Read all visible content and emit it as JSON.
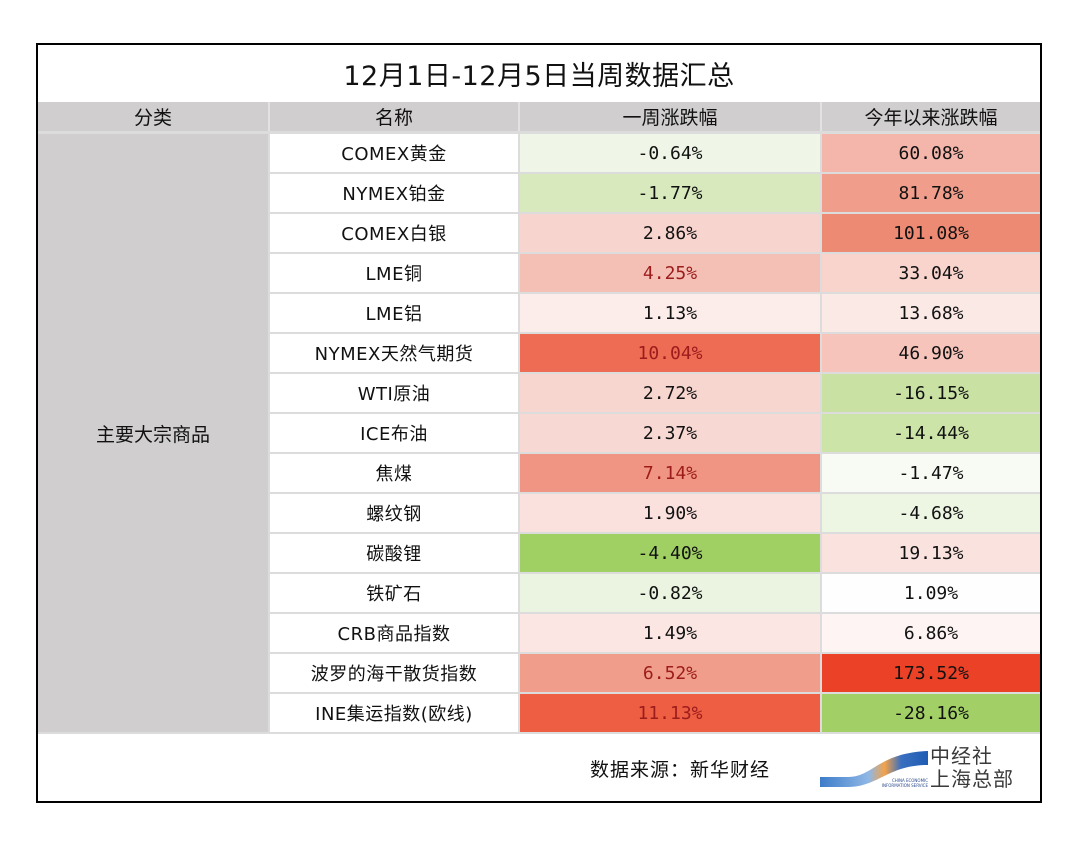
{
  "title": "12月1日-12月5日当周数据汇总",
  "headers": [
    "分类",
    "名称",
    "一周涨跌幅",
    "今年以来涨跌幅"
  ],
  "category": "主要大宗商品",
  "rows": [
    {
      "name": "COMEX黄金",
      "week": "-0.64%",
      "ytd": "60.08%",
      "week_bg": "#eff6e7",
      "ytd_bg": "#f4b6aa",
      "week_color": "#111111"
    },
    {
      "name": "NYMEX铂金",
      "week": "-1.77%",
      "ytd": "81.78%",
      "week_bg": "#d8eabd",
      "ytd_bg": "#f09d8c",
      "week_color": "#111111"
    },
    {
      "name": "COMEX白银",
      "week": "2.86%",
      "ytd": "101.08%",
      "week_bg": "#f8d4ce",
      "ytd_bg": "#ed8a74",
      "week_color": "#111111"
    },
    {
      "name": "LME铜",
      "week": "4.25%",
      "ytd": "33.04%",
      "week_bg": "#f4bfb4",
      "ytd_bg": "#f8d4cd",
      "week_color": "#9c1c1c"
    },
    {
      "name": "LME铝",
      "week": "1.13%",
      "ytd": "13.68%",
      "week_bg": "#fcecea",
      "ytd_bg": "#fbe9e6",
      "week_color": "#111111"
    },
    {
      "name": "NYMEX天然气期货",
      "week": "10.04%",
      "ytd": "46.90%",
      "week_bg": "#ee6c53",
      "ytd_bg": "#f6c4ba",
      "week_color": "#9c1c1c"
    },
    {
      "name": "WTI原油",
      "week": "2.72%",
      "ytd": "-16.15%",
      "week_bg": "#f8d6d0",
      "ytd_bg": "#c9e2a4",
      "week_color": "#111111"
    },
    {
      "name": "ICE布油",
      "week": "2.37%",
      "ytd": "-14.44%",
      "week_bg": "#f8d8d2",
      "ytd_bg": "#cde4a9",
      "week_color": "#111111"
    },
    {
      "name": "焦煤",
      "week": "7.14%",
      "ytd": "-1.47%",
      "week_bg": "#f09583",
      "ytd_bg": "#f8fbf4",
      "week_color": "#9c1c1c"
    },
    {
      "name": "螺纹钢",
      "week": "1.90%",
      "ytd": "-4.68%",
      "week_bg": "#fae1dd",
      "ytd_bg": "#edf5e3",
      "week_color": "#111111"
    },
    {
      "name": "碳酸锂",
      "week": "-4.40%",
      "ytd": "19.13%",
      "week_bg": "#a0cf64",
      "ytd_bg": "#fae3de",
      "week_color": "#111111"
    },
    {
      "name": "铁矿石",
      "week": "-0.82%",
      "ytd": "1.09%",
      "week_bg": "#ebf4e0",
      "ytd_bg": "#fffefe",
      "week_color": "#111111"
    },
    {
      "name": "CRB商品指数",
      "week": "1.49%",
      "ytd": "6.86%",
      "week_bg": "#fbe6e3",
      "ytd_bg": "#fdf4f3",
      "week_color": "#111111"
    },
    {
      "name": "波罗的海干散货指数",
      "week": "6.52%",
      "ytd": "173.52%",
      "week_bg": "#f09d8b",
      "ytd_bg": "#ea4127",
      "week_color": "#9c1c1c"
    },
    {
      "name": "INE集运指数(欧线)",
      "week": "11.13%",
      "ytd": "-28.16%",
      "week_bg": "#ed5e42",
      "ytd_bg": "#a2d066",
      "week_color": "#9c1c1c"
    }
  ],
  "footer": {
    "source": "数据来源：新华财经",
    "logo_line1": "中经社",
    "logo_line2": "上海总部",
    "logo_small1": "CHINA ECONOMIC",
    "logo_small2": "INFORMATION SERVICE"
  }
}
